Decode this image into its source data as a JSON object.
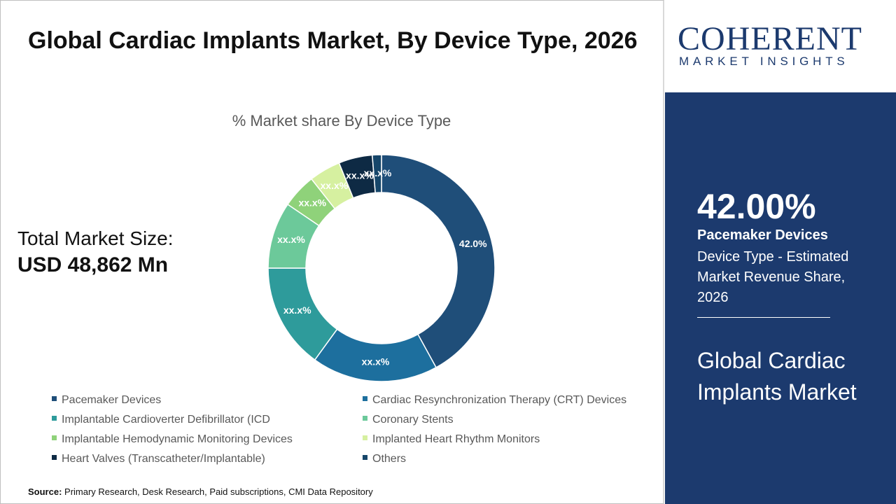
{
  "chart_data": {
    "type": "donut",
    "title": "Global Cardiac Implants Market, By Device Type, 2026",
    "subtitle": "% Market share By Device Type",
    "categories": [
      "Pacemaker Devices",
      "Cardiac Resynchronization Therapy (CRT) Devices",
      "Implantable Cardioverter Defibrillator (ICD",
      "Coronary Stents",
      "Implantable Hemodynamic Monitoring Devices",
      "Implanted Heart Rhythm Monitors",
      "Heart Valves (Transcatheter/Implantable)",
      "Others"
    ],
    "values": [
      42.0,
      18.0,
      15.0,
      9.5,
      4.9,
      4.5,
      4.8,
      1.3
    ],
    "value_labels": [
      "42.0%",
      "xx.x%",
      "xx.x%",
      "xx.x%",
      "xx.x%",
      "xx.x%",
      "xx.x%",
      "xx.x%"
    ],
    "colors": [
      "#1f4e79",
      "#1d6f9e",
      "#2e9b9b",
      "#6cc99a",
      "#8fd27a",
      "#d6f0a0",
      "#0e2a44",
      "#16466a"
    ]
  },
  "total_market": {
    "label": "Total Market Size:",
    "value": "USD 48,862 Mn"
  },
  "logo": {
    "name": "COHERENT",
    "tagline": "MARKET INSIGHTS"
  },
  "highlight": {
    "value": "42.00%",
    "segment": "Pacemaker Devices",
    "description": "Device Type - Estimated Market Revenue Share, 2026",
    "market": "Global Cardiac Implants Market"
  },
  "source": {
    "label": "Source:",
    "text": "Primary Research, Desk Research, Paid subscriptions, CMI Data Repository"
  }
}
